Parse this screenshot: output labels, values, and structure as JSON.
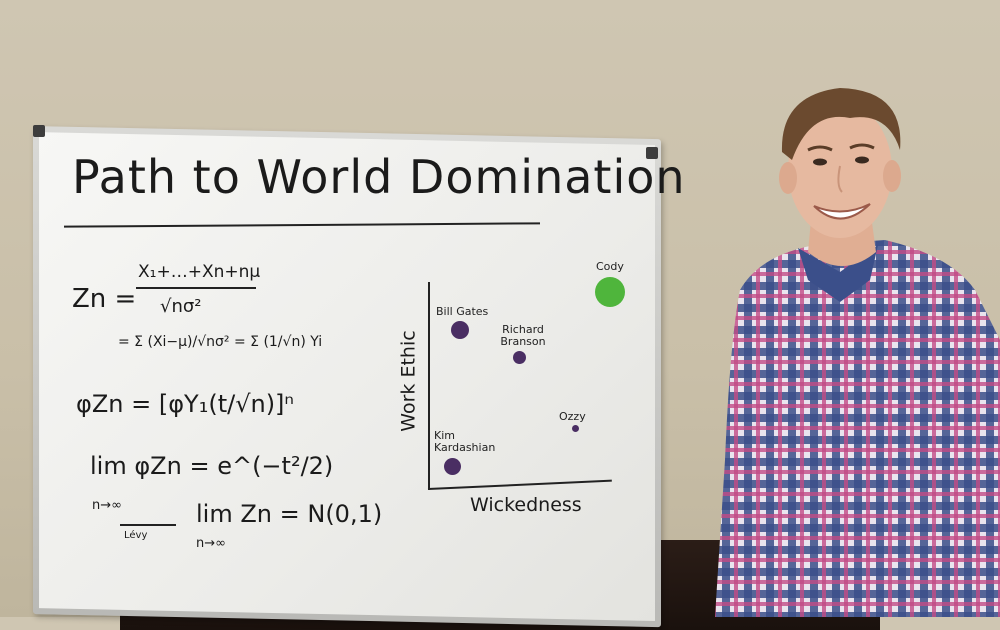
{
  "whiteboard": {
    "title": "Path to World Domination",
    "equations": {
      "line1_lhs": "Zn =",
      "line1_num": "X₁+…+Xn+nμ",
      "line1_den": "√nσ²",
      "line2": "= Σ (Xi−μ)/√nσ² = Σ (1/√n) Yi",
      "line3": "φZn = [φY₁(t/√n)]ⁿ",
      "line4": "lim φZn = e^(−t²/2)",
      "line4_sub": "n→∞",
      "line5_arrow_label": "Lévy",
      "line5": "lim Zn = N(0,1)",
      "line5_sub": "n→∞"
    },
    "chart": {
      "ylabel": "Work Ethic",
      "xlabel": "Wickedness",
      "points": [
        {
          "label": "Cody",
          "color": "#4fb53c"
        },
        {
          "label": "Bill Gates",
          "color": "#4a2e63"
        },
        {
          "label": "Richard Branson",
          "color": "#4a2e63"
        },
        {
          "label": "Ozzy",
          "color": "#4a2e63"
        },
        {
          "label": "Kim Kardashian",
          "color": "#4a2e63"
        }
      ]
    }
  },
  "colors": {
    "wall": "#cbc2ad",
    "board": "#f1f1ee",
    "frame": "#c8c8c5",
    "shirt_blue": "#3b4f8a",
    "shirt_pink": "#c24b86",
    "hair": "#6b4a2f",
    "skin": "#e6b9a0"
  }
}
